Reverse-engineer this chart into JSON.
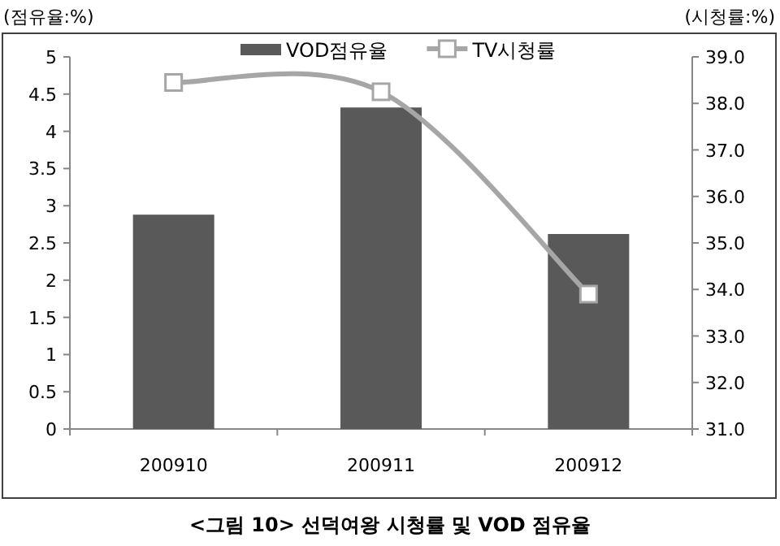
{
  "chart_data": {
    "type": "bar",
    "title": "<그림 10> 선덕여왕 시청률 및 VOD 점유율",
    "ylabel": "(점유율:%)",
    "y2label": "(시청률:%)",
    "categories": [
      "200910",
      "200911",
      "200912"
    ],
    "series": [
      {
        "name": "VOD점유율",
        "color": "#595959",
        "values": [
          2.88,
          4.32,
          2.62
        ]
      },
      {
        "name": "TV시청률",
        "type": "line",
        "axis": "y2",
        "color": "#a6a6a6",
        "marker": "square",
        "values": [
          38.45,
          38.25,
          33.9
        ]
      }
    ],
    "ylim": [
      0,
      5
    ],
    "yticks": [
      0,
      0.5,
      1,
      1.5,
      2,
      2.5,
      3,
      3.5,
      4,
      4.5,
      5
    ],
    "y2lim": [
      31,
      39
    ],
    "y2ticks": [
      {
        "value": 31,
        "label": "31.0"
      },
      {
        "value": 32,
        "label": "32.0"
      },
      {
        "value": 33,
        "label": "33.0"
      },
      {
        "value": 34,
        "label": "34.0"
      },
      {
        "value": 35,
        "label": "35.0"
      },
      {
        "value": 36,
        "label": "36.0"
      },
      {
        "value": 37,
        "label": "37.0"
      },
      {
        "value": 38,
        "label": "38.0"
      },
      {
        "value": 39,
        "label": "39.0"
      }
    ],
    "legend": "top"
  }
}
